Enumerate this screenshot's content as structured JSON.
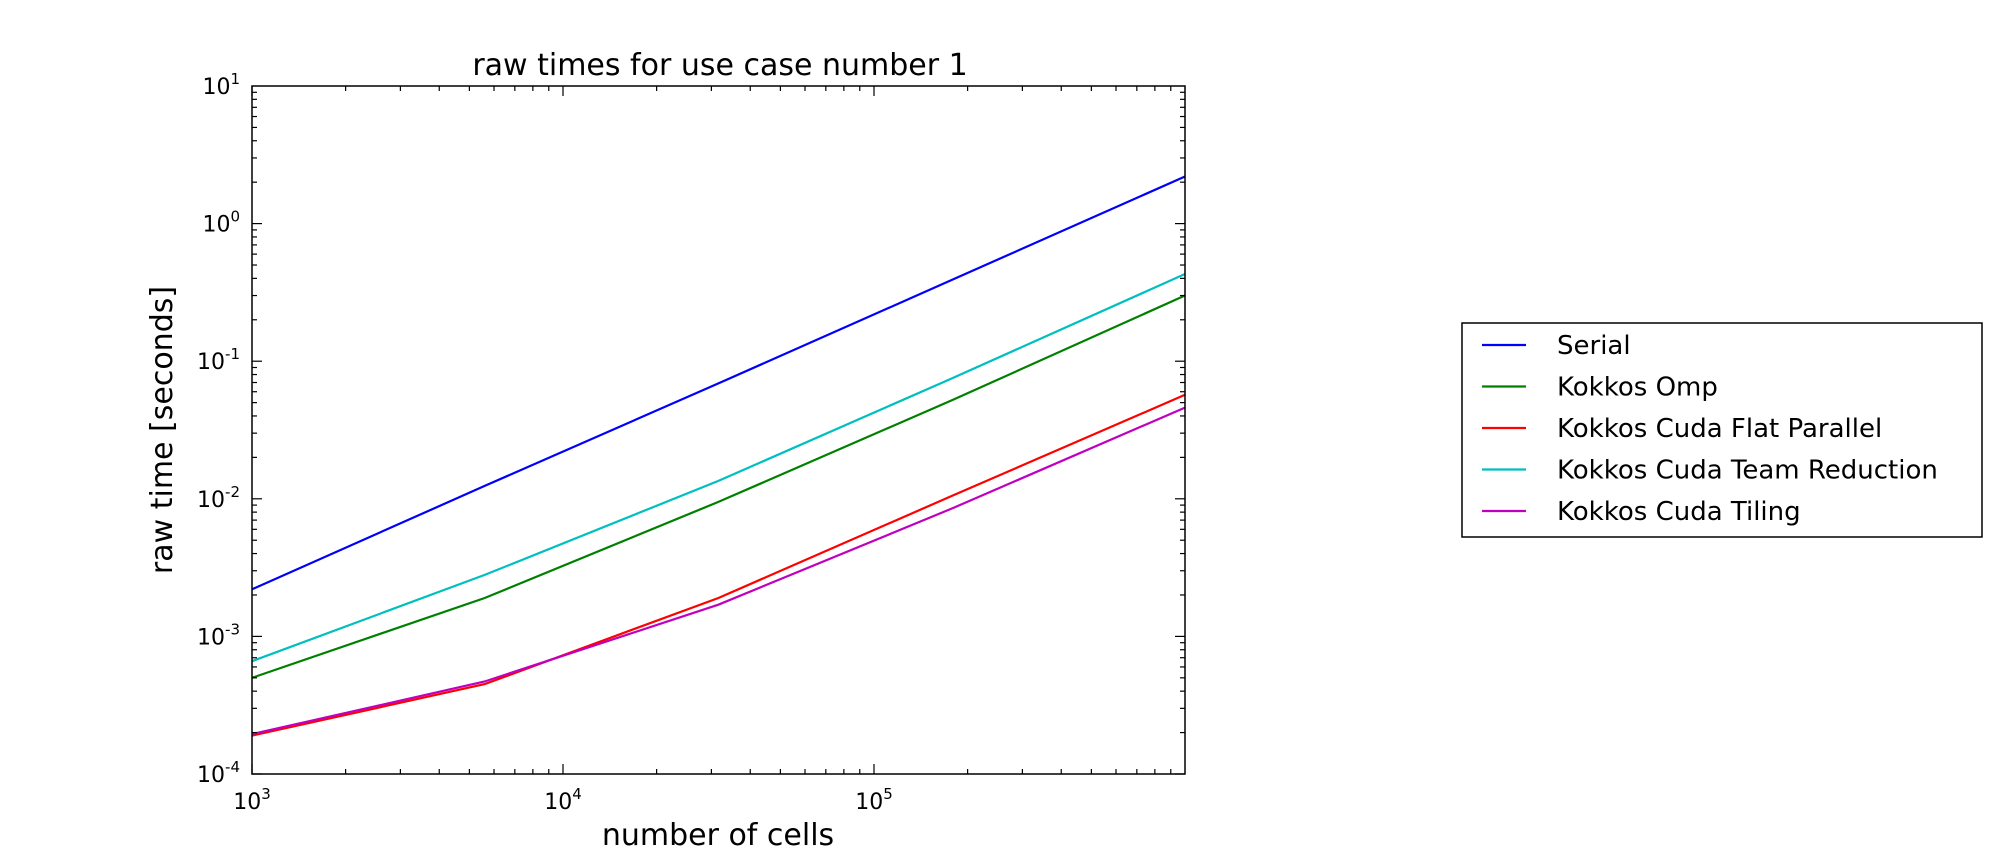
{
  "chart_data": {
    "type": "line",
    "title": "raw times for use case number 1",
    "xlabel": "number of cells",
    "ylabel": "raw time [seconds]",
    "xscale": "log",
    "yscale": "log",
    "xlim": [
      1000,
      1000000
    ],
    "ylim": [
      0.0001,
      10
    ],
    "x_ticks": [
      {
        "base": "10",
        "exp": "3",
        "value": 1000
      },
      {
        "base": "10",
        "exp": "4",
        "value": 10000
      },
      {
        "base": "10",
        "exp": "5",
        "value": 100000
      }
    ],
    "y_ticks": [
      {
        "base": "10",
        "exp": "1",
        "value": 10
      },
      {
        "base": "10",
        "exp": "0",
        "value": 1
      },
      {
        "base": "10",
        "exp": "-1",
        "value": 0.1
      },
      {
        "base": "10",
        "exp": "-2",
        "value": 0.01
      },
      {
        "base": "10",
        "exp": "-3",
        "value": 0.001
      },
      {
        "base": "10",
        "exp": "-4",
        "value": 0.0001
      }
    ],
    "grid": false,
    "legend_position": "right, outside plot",
    "series": [
      {
        "name": "Serial",
        "color": "#0000ff",
        "x": [
          1000,
          5600,
          31600,
          178000,
          1000000
        ],
        "y": [
          0.0022,
          0.0124,
          0.069,
          0.39,
          2.2
        ]
      },
      {
        "name": "Kokkos Omp",
        "color": "#008000",
        "x": [
          1000,
          5600,
          31600,
          178000,
          1000000
        ],
        "y": [
          0.0005,
          0.0019,
          0.0095,
          0.052,
          0.3
        ]
      },
      {
        "name": "Kokkos Cuda Flat Parallel",
        "color": "#ff0000",
        "x": [
          1000,
          5600,
          31600,
          178000,
          1000000
        ],
        "y": [
          0.00019,
          0.00045,
          0.0019,
          0.0105,
          0.057
        ]
      },
      {
        "name": "Kokkos Cuda Team Reduction",
        "color": "#00bfbf",
        "x": [
          1000,
          5600,
          31600,
          178000,
          1000000
        ],
        "y": [
          0.00066,
          0.0028,
          0.0135,
          0.075,
          0.43
        ]
      },
      {
        "name": "Kokkos Cuda Tiling",
        "color": "#bf00bf",
        "x": [
          1000,
          5600,
          31600,
          178000,
          1000000
        ],
        "y": [
          0.000195,
          0.00047,
          0.0017,
          0.0085,
          0.046
        ]
      }
    ]
  }
}
